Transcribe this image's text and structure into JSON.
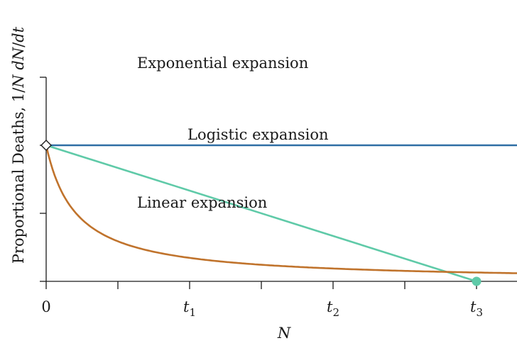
{
  "chart_data": {
    "type": "line",
    "title": "",
    "xlabel": "N",
    "ylabel": "Proportional Deaths, 1/N dN/dt",
    "xlim": [
      0,
      3.3
    ],
    "ylim": [
      0,
      1.5
    ],
    "grid": false,
    "x_ticks": [
      0,
      0.5,
      1,
      1.5,
      2,
      2.5,
      3
    ],
    "x_tick_labels": [
      {
        "x": 0,
        "label": "0"
      },
      {
        "x": 1,
        "label": "t1"
      },
      {
        "x": 2,
        "label": "t2"
      },
      {
        "x": 3,
        "label": "t3"
      }
    ],
    "y_ticks": [
      0,
      0.5,
      1,
      1.5
    ],
    "series": [
      {
        "name": "Exponential expansion",
        "color": "#2e6da4",
        "x": [
          0,
          3.3
        ],
        "y": [
          1,
          1
        ]
      },
      {
        "name": "Logistic expansion",
        "color": "#5fcaa8",
        "x": [
          0,
          3
        ],
        "y": [
          1,
          0
        ]
      },
      {
        "name": "Linear expansion",
        "color": "#c0732c",
        "formula": "y = 1/(1 + 4.8x)",
        "x": [
          0,
          0.25,
          0.5,
          0.75,
          1,
          1.5,
          2,
          2.5,
          3,
          3.3
        ],
        "y": [
          1,
          0.455,
          0.294,
          0.217,
          0.172,
          0.122,
          0.094,
          0.077,
          0.065,
          0.059
        ]
      }
    ],
    "annotations": [
      {
        "type": "marker",
        "shape": "diamond",
        "x": 0,
        "y": 1,
        "color": "#1a1a1a"
      },
      {
        "type": "marker",
        "shape": "circle",
        "x": 3,
        "y": 0,
        "color": "#5fcaa8"
      }
    ]
  }
}
